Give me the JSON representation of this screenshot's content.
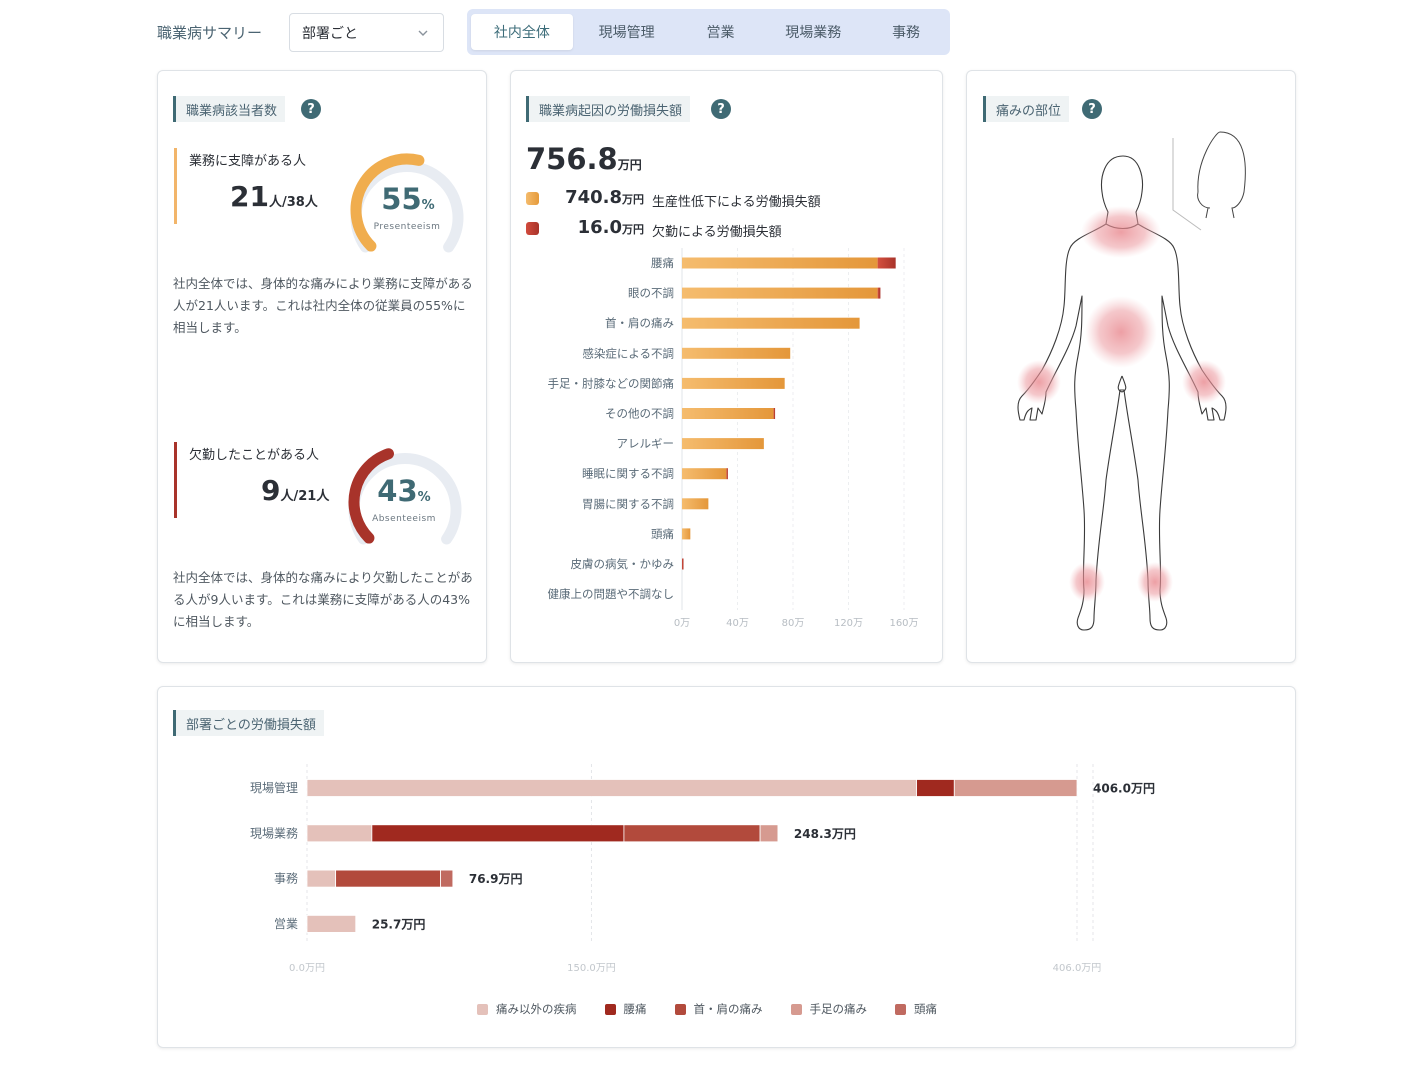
{
  "header": {
    "title": "職業病サマリー",
    "dept_select": "部署ごと",
    "tabs": [
      {
        "label": "社内全体",
        "active": true
      },
      {
        "label": "現場管理",
        "active": false
      },
      {
        "label": "営業",
        "active": false
      },
      {
        "label": "現場業務",
        "active": false
      },
      {
        "label": "事務",
        "active": false
      }
    ]
  },
  "patients": {
    "title": "職業病該当者数",
    "help": "?",
    "presenteeism": {
      "label": "業務に支障がある人",
      "count": "21",
      "count_unit": "人/38人",
      "pct": "55",
      "pct_unit": "%",
      "pct_value": 55,
      "gauge_label": "Presenteeism",
      "description": "社内全体では、身体的な痛みにより業務に支障がある人が21人います。これは社内全体の従業員の55%に相当します。",
      "color": "#f0ad4e"
    },
    "absenteeism": {
      "label": "欠勤したことがある人",
      "count": "9",
      "count_unit": "人/21人",
      "pct": "43",
      "pct_unit": "%",
      "pct_value": 43,
      "gauge_label": "Absenteeism",
      "description": "社内全体では、身体的な痛みにより欠勤したことがある人が9人います。これは業務に支障がある人の43%に相当します。",
      "color": "#a8332a"
    }
  },
  "loss": {
    "title": "職業病起因の労働損失額",
    "help": "?",
    "total": "756.8",
    "total_unit": "万円",
    "presenteeism_value": "740.8",
    "presenteeism_unit": "万円",
    "presenteeism_label": "生産性低下による労働損失額",
    "absenteeism_value": "16.0",
    "absenteeism_unit": "万円",
    "absenteeism_label": "欠勤による労働損失額",
    "color_presenteeism": "#eea64a",
    "color_absenteeism": "#b8392d"
  },
  "body_map": {
    "title": "痛みの部位",
    "help": "?",
    "highlight_color": "#e8838a"
  },
  "dept_loss": {
    "title": "部署ごとの労働損失額"
  },
  "chart_data": [
    {
      "type": "bar",
      "orientation": "horizontal",
      "stacked": true,
      "categories": [
        "腰痛",
        "眼の不調",
        "首・肩の痛み",
        "感染症による不調",
        "手足・肘膝などの関節痛",
        "その他の不調",
        "アレルギー",
        "睡眠に関する不調",
        "胃腸に関する不調",
        "頭痛",
        "皮膚の病気・かゆみ",
        "健康上の問題や不調なし"
      ],
      "series": [
        {
          "values": [
            141,
            141,
            128,
            78,
            74,
            66,
            59,
            32,
            19,
            6,
            0,
            0
          ],
          "color": "#eea64a"
        },
        {
          "values": [
            13,
            2,
            0,
            0,
            0,
            1,
            0,
            1,
            0,
            0,
            1,
            0
          ],
          "color": "#b8392d"
        }
      ],
      "xlim": [
        0,
        160
      ],
      "xticks": [
        "0万",
        "40万",
        "80万",
        "120万",
        "160万"
      ],
      "grid": true
    },
    {
      "type": "bar",
      "orientation": "horizontal",
      "stacked": true,
      "categories": [
        "現場管理",
        "現場業務",
        "事務",
        "営業"
      ],
      "totals": [
        "406.0万円",
        "248.3万円",
        "76.9万円",
        "25.7万円"
      ],
      "series": [
        {
          "name": "痛み以外の疾病",
          "values": [
            321.4,
            34.2,
            15.1,
            25.7
          ],
          "color": "#e4c1ba"
        },
        {
          "name": "腰痛",
          "values": [
            19.9,
            132.9,
            0,
            0
          ],
          "color": "#a0291f"
        },
        {
          "name": "首・肩の痛み",
          "values": [
            0,
            71.8,
            55.3,
            0
          ],
          "color": "#b24a3c"
        },
        {
          "name": "手足の痛み",
          "values": [
            64.7,
            9.4,
            0,
            0
          ],
          "color": "#d69a90"
        },
        {
          "name": "頭痛",
          "values": [
            0,
            0,
            6.5,
            0
          ],
          "color": "#c06a60"
        }
      ],
      "xlim": [
        0,
        406.0
      ],
      "xticks": [
        "0.0万円",
        "150.0万円",
        "406.0万円"
      ],
      "grid": true,
      "legend": "bottom"
    }
  ]
}
